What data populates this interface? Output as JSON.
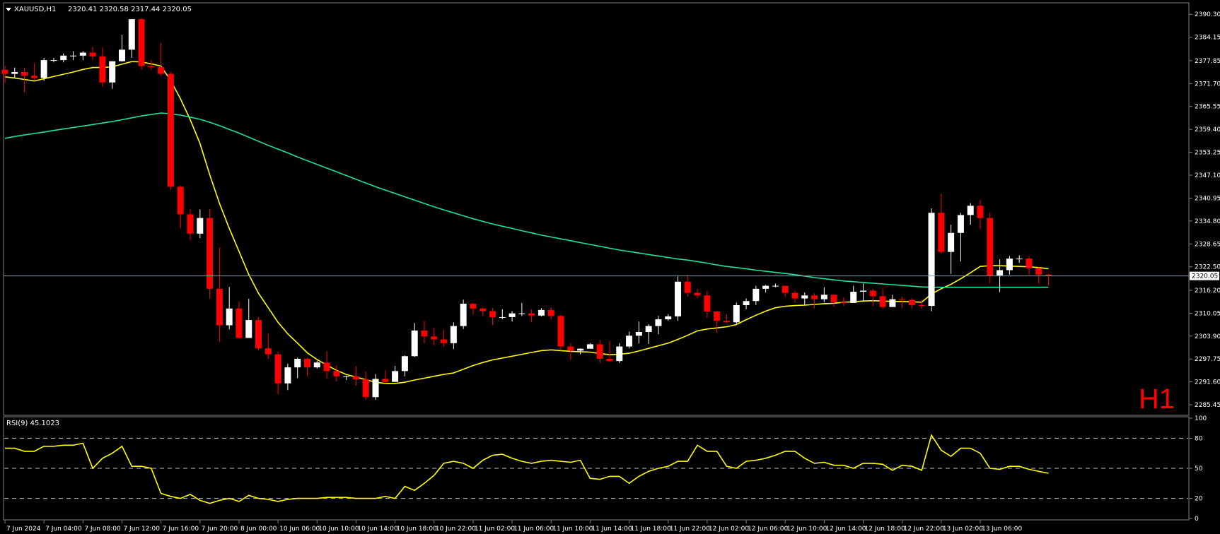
{
  "header": {
    "symbol": "XAUUSD,H1",
    "ohlc": "2320.41 2320.58 2317.44 2320.05",
    "timeframe_badge": "H1"
  },
  "colors": {
    "background": "#000000",
    "bull_candle": "#ffffff",
    "bear_candle": "#ff0000",
    "ma_fast": "#ffff00",
    "ma_slow": "#20e0a0",
    "rsi_line": "#ffff00",
    "bid_line": "#8a9aa8"
  },
  "chart_data": [
    {
      "type": "candlestick",
      "title": "XAUUSD,H1",
      "bid_label": "2320.05",
      "ylim": [
        2283.0,
        2393.0
      ],
      "y_ticks": [
        "2390.30",
        "2384.15",
        "2377.85",
        "2371.70",
        "2365.55",
        "2359.40",
        "2353.25",
        "2347.10",
        "2340.95",
        "2334.80",
        "2328.65",
        "2322.50",
        "2316.20",
        "2310.05",
        "2303.90",
        "2297.75",
        "2291.60",
        "2285.45"
      ],
      "x_tick_labels": [
        "7 Jun 2024",
        "7 Jun 04:00",
        "7 Jun 08:00",
        "7 Jun 12:00",
        "7 Jun 16:00",
        "7 Jun 20:00",
        "8 Jun 00:00",
        "10 Jun 06:00",
        "10 Jun 10:00",
        "10 Jun 14:00",
        "10 Jun 18:00",
        "10 Jun 22:00",
        "11 Jun 02:00",
        "11 Jun 06:00",
        "11 Jun 10:00",
        "11 Jun 14:00",
        "11 Jun 18:00",
        "11 Jun 22:00",
        "12 Jun 02:00",
        "12 Jun 06:00",
        "12 Jun 10:00",
        "12 Jun 14:00",
        "12 Jun 18:00",
        "12 Jun 22:00",
        "13 Jun 02:00",
        "13 Jun 06:00"
      ],
      "candles": [
        [
          2375.4,
          2374.3,
          2376.5,
          2371.9
        ],
        [
          2374.3,
          2374.8,
          2376.0,
          2373.2
        ],
        [
          2374.8,
          2373.8,
          2375.9,
          2369.3
        ],
        [
          2373.8,
          2373.2,
          2377.2,
          2372.5
        ],
        [
          2373.2,
          2378.0,
          2378.6,
          2372.4
        ],
        [
          2378.0,
          2378.0,
          2378.6,
          2377.4
        ],
        [
          2378.0,
          2379.2,
          2379.8,
          2377.4
        ],
        [
          2379.2,
          2379.2,
          2380.4,
          2378.0
        ],
        [
          2379.2,
          2380.0,
          2380.4,
          2378.0
        ],
        [
          2380.0,
          2379.0,
          2381.6,
          2378.0
        ],
        [
          2379.0,
          2372.0,
          2381.4,
          2370.8
        ],
        [
          2372.0,
          2377.7,
          2377.7,
          2370.3
        ],
        [
          2377.7,
          2380.8,
          2384.8,
          2377.6
        ],
        [
          2380.8,
          2389.0,
          2389.0,
          2378.6
        ],
        [
          2389.0,
          2376.4,
          2389.3,
          2375.4
        ],
        [
          2376.4,
          2376.1,
          2378.0,
          2375.4
        ],
        [
          2376.1,
          2374.3,
          2382.6,
          2373.8
        ],
        [
          2374.3,
          2344.0,
          2374.8,
          2343.2
        ],
        [
          2344.0,
          2336.6,
          2344.3,
          2332.8
        ],
        [
          2336.6,
          2331.4,
          2338.0,
          2329.7
        ],
        [
          2331.4,
          2335.6,
          2337.9,
          2330.2
        ],
        [
          2335.6,
          2316.6,
          2338.0,
          2313.9
        ],
        [
          2316.6,
          2306.8,
          2327.7,
          2302.3
        ],
        [
          2306.8,
          2311.3,
          2317.1,
          2305.7
        ],
        [
          2311.3,
          2303.4,
          2313.1,
          2303.2
        ],
        [
          2303.4,
          2308.2,
          2313.9,
          2306.4
        ],
        [
          2308.2,
          2300.6,
          2309.0,
          2300.1
        ],
        [
          2300.6,
          2299.0,
          2304.5,
          2297.8
        ],
        [
          2299.0,
          2291.2,
          2299.7,
          2288.3
        ],
        [
          2291.2,
          2295.5,
          2296.5,
          2289.4
        ],
        [
          2295.5,
          2297.8,
          2298.1,
          2292.6
        ],
        [
          2297.8,
          2295.5,
          2298.1,
          2293.1
        ],
        [
          2295.5,
          2296.8,
          2297.3,
          2295.2
        ],
        [
          2296.8,
          2294.5,
          2299.8,
          2292.5
        ],
        [
          2294.5,
          2293.1,
          2296.1,
          2291.7
        ],
        [
          2293.1,
          2293.1,
          2293.3,
          2292.1
        ],
        [
          2293.1,
          2292.3,
          2295.8,
          2290.6
        ],
        [
          2292.3,
          2287.5,
          2294.4,
          2286.8
        ],
        [
          2287.5,
          2292.4,
          2293.7,
          2286.8
        ],
        [
          2292.4,
          2291.6,
          2294.7,
          2291.2
        ],
        [
          2291.6,
          2294.5,
          2295.9,
          2291.6
        ],
        [
          2294.5,
          2298.5,
          2298.7,
          2293.1
        ],
        [
          2298.5,
          2305.4,
          2307.4,
          2298.3
        ],
        [
          2305.4,
          2303.8,
          2308.0,
          2302.0
        ],
        [
          2303.8,
          2303.0,
          2306.1,
          2301.4
        ],
        [
          2303.0,
          2302.0,
          2305.6,
          2301.1
        ],
        [
          2302.0,
          2306.6,
          2307.6,
          2300.4
        ],
        [
          2306.6,
          2312.6,
          2313.7,
          2305.8
        ],
        [
          2312.6,
          2311.3,
          2312.8,
          2309.7
        ],
        [
          2311.3,
          2310.6,
          2311.6,
          2309.3
        ],
        [
          2310.6,
          2309.0,
          2311.4,
          2306.8
        ],
        [
          2309.0,
          2309.0,
          2311.1,
          2308.4
        ],
        [
          2309.0,
          2310.0,
          2310.6,
          2307.8
        ],
        [
          2310.0,
          2310.0,
          2312.8,
          2309.3
        ],
        [
          2310.0,
          2309.4,
          2311.1,
          2307.6
        ],
        [
          2309.4,
          2310.9,
          2311.4,
          2309.2
        ],
        [
          2310.9,
          2309.3,
          2311.6,
          2308.4
        ],
        [
          2309.3,
          2301.1,
          2309.6,
          2300.0
        ],
        [
          2301.1,
          2300.0,
          2301.9,
          2297.5
        ],
        [
          2300.0,
          2300.5,
          2300.6,
          2299.0
        ],
        [
          2300.5,
          2301.7,
          2302.0,
          2301.1
        ],
        [
          2301.7,
          2297.8,
          2302.9,
          2296.7
        ],
        [
          2297.8,
          2297.2,
          2302.6,
          2297.0
        ],
        [
          2297.2,
          2301.1,
          2302.0,
          2296.7
        ],
        [
          2301.1,
          2304.0,
          2305.1,
          2300.6
        ],
        [
          2304.0,
          2305.0,
          2307.8,
          2301.9
        ],
        [
          2305.0,
          2306.6,
          2307.1,
          2301.8
        ],
        [
          2306.6,
          2308.4,
          2309.3,
          2304.4
        ],
        [
          2308.4,
          2309.2,
          2309.8,
          2308.0
        ],
        [
          2309.2,
          2318.5,
          2319.9,
          2308.0
        ],
        [
          2318.5,
          2315.5,
          2320.3,
          2314.5
        ],
        [
          2315.5,
          2314.8,
          2316.6,
          2314.0
        ],
        [
          2314.8,
          2310.5,
          2316.1,
          2308.8
        ],
        [
          2310.5,
          2308.0,
          2310.6,
          2304.8
        ],
        [
          2308.0,
          2307.6,
          2309.8,
          2307.4
        ],
        [
          2307.6,
          2312.2,
          2312.9,
          2307.2
        ],
        [
          2312.2,
          2313.3,
          2314.0,
          2311.1
        ],
        [
          2313.3,
          2316.6,
          2317.4,
          2312.2
        ],
        [
          2316.6,
          2317.4,
          2317.6,
          2315.6
        ],
        [
          2317.4,
          2317.4,
          2318.0,
          2317.0
        ],
        [
          2317.4,
          2315.5,
          2317.4,
          2314.4
        ],
        [
          2315.5,
          2314.0,
          2316.1,
          2312.8
        ],
        [
          2314.0,
          2314.8,
          2315.6,
          2312.3
        ],
        [
          2314.8,
          2313.8,
          2315.4,
          2311.3
        ],
        [
          2313.8,
          2315.0,
          2317.0,
          2313.0
        ],
        [
          2315.0,
          2313.0,
          2314.5,
          2311.8
        ],
        [
          2313.0,
          2312.8,
          2314.3,
          2312.0
        ],
        [
          2312.8,
          2315.8,
          2317.4,
          2313.8
        ],
        [
          2315.8,
          2316.1,
          2318.0,
          2313.1
        ],
        [
          2316.1,
          2314.6,
          2316.6,
          2312.0
        ],
        [
          2314.6,
          2311.7,
          2316.6,
          2311.3
        ],
        [
          2311.7,
          2313.8,
          2315.0,
          2312.3
        ],
        [
          2313.8,
          2313.6,
          2314.5,
          2311.4
        ],
        [
          2313.6,
          2312.2,
          2314.0,
          2311.3
        ],
        [
          2312.2,
          2312.0,
          2313.6,
          2311.2
        ],
        [
          2312.0,
          2337.0,
          2338.2,
          2310.6
        ],
        [
          2337.0,
          2326.5,
          2342.2,
          2326.0
        ],
        [
          2326.5,
          2331.6,
          2333.8,
          2320.6
        ],
        [
          2331.6,
          2336.4,
          2337.0,
          2323.9
        ],
        [
          2336.4,
          2338.9,
          2339.6,
          2333.8
        ],
        [
          2338.9,
          2335.6,
          2340.4,
          2332.6
        ],
        [
          2335.6,
          2320.2,
          2337.1,
          2318.0
        ],
        [
          2320.2,
          2321.6,
          2324.5,
          2315.7
        ],
        [
          2321.6,
          2324.7,
          2325.4,
          2320.4
        ],
        [
          2324.7,
          2324.7,
          2325.6,
          2323.6
        ],
        [
          2324.7,
          2322.1,
          2325.4,
          2320.4
        ],
        [
          2322.1,
          2320.4,
          2322.4,
          2318.0
        ],
        [
          2320.41,
          2320.05,
          2320.58,
          2317.44
        ]
      ],
      "series": [
        {
          "name": "",
          "kind": "ma_fast",
          "values": [
            2373.5,
            2373.2,
            2372.8,
            2372.4,
            2373.0,
            2373.6,
            2374.2,
            2374.8,
            2375.5,
            2376.0,
            2376.0,
            2376.2,
            2376.9,
            2377.6,
            2377.5,
            2377.0,
            2376.4,
            2372.5,
            2367.6,
            2362.0,
            2355.6,
            2347.2,
            2339.5,
            2332.8,
            2326.6,
            2320.4,
            2315.4,
            2311.5,
            2307.6,
            2304.5,
            2302.0,
            2299.4,
            2297.6,
            2296.1,
            2294.7,
            2293.6,
            2292.9,
            2292.2,
            2291.5,
            2291.2,
            2291.2,
            2291.5,
            2292.1,
            2292.6,
            2293.1,
            2293.6,
            2294.0,
            2295.0,
            2296.0,
            2296.8,
            2297.5,
            2298.0,
            2298.5,
            2299.0,
            2299.5,
            2300.0,
            2300.2,
            2300.0,
            2299.8,
            2299.7,
            2299.6,
            2299.2,
            2298.9,
            2299.0,
            2299.3,
            2299.9,
            2300.6,
            2301.3,
            2302.0,
            2303.0,
            2304.1,
            2305.3,
            2305.8,
            2306.1,
            2306.4,
            2307.0,
            2308.3,
            2309.5,
            2310.6,
            2311.5,
            2311.9,
            2312.1,
            2312.2,
            2312.4,
            2312.6,
            2312.7,
            2313.0,
            2313.1,
            2313.3,
            2313.4,
            2313.3,
            2313.2,
            2313.2,
            2313.1,
            2313.0,
            2315.2,
            2316.6,
            2317.8,
            2319.3,
            2320.9,
            2322.6,
            2322.8,
            2322.8,
            2322.7,
            2322.6,
            2322.5,
            2322.3,
            2322.0
          ]
        },
        {
          "name": "",
          "kind": "ma_slow",
          "values": [
            2357.0,
            2357.5,
            2357.9,
            2358.3,
            2358.7,
            2359.1,
            2359.5,
            2359.9,
            2360.3,
            2360.7,
            2361.1,
            2361.5,
            2362.0,
            2362.5,
            2363.0,
            2363.4,
            2363.8,
            2363.6,
            2363.2,
            2362.7,
            2362.1,
            2361.3,
            2360.4,
            2359.4,
            2358.4,
            2357.3,
            2356.2,
            2355.1,
            2354.1,
            2353.1,
            2352.0,
            2351.0,
            2350.0,
            2349.0,
            2348.0,
            2347.0,
            2346.0,
            2345.0,
            2344.0,
            2343.1,
            2342.2,
            2341.3,
            2340.4,
            2339.5,
            2338.6,
            2337.8,
            2337.0,
            2336.2,
            2335.4,
            2334.7,
            2334.0,
            2333.4,
            2332.8,
            2332.2,
            2331.6,
            2331.0,
            2330.5,
            2330.0,
            2329.5,
            2329.0,
            2328.5,
            2328.0,
            2327.5,
            2327.0,
            2326.6,
            2326.2,
            2325.8,
            2325.4,
            2325.0,
            2324.6,
            2324.3,
            2323.9,
            2323.5,
            2323.0,
            2322.6,
            2322.3,
            2322.0,
            2321.6,
            2321.3,
            2321.0,
            2320.7,
            2320.4,
            2320.0,
            2319.6,
            2319.3,
            2319.0,
            2318.7,
            2318.5,
            2318.3,
            2318.1,
            2317.9,
            2317.7,
            2317.5,
            2317.3,
            2317.1,
            2317.0,
            2317.0,
            2317.0,
            2317.0,
            2317.0,
            2317.0,
            2317.0,
            2317.0,
            2317.0,
            2317.0,
            2317.0,
            2317.0,
            2317.0
          ]
        }
      ]
    },
    {
      "type": "line",
      "title": "RSI(9) 45.1023",
      "ylim": [
        0,
        100
      ],
      "y_ticks": [
        "100",
        "80",
        "50",
        "20",
        "0"
      ],
      "levels": [
        80,
        50,
        20
      ],
      "series": [
        {
          "name": "",
          "values": [
            70,
            70,
            67,
            67,
            72,
            72,
            73,
            73,
            75,
            50,
            60,
            65,
            72,
            52,
            52,
            50,
            25,
            22,
            20,
            24,
            18,
            15,
            18,
            20,
            17,
            23,
            20,
            19,
            17,
            19,
            20,
            20,
            20,
            21,
            21,
            21,
            20,
            20,
            20,
            22,
            20,
            32,
            28,
            35,
            43,
            55,
            57,
            55,
            50,
            58,
            63,
            64,
            60,
            57,
            55,
            57,
            58,
            57,
            56,
            58,
            40,
            39,
            42,
            42,
            35,
            42,
            47,
            50,
            52,
            57,
            57,
            73,
            67,
            67,
            52,
            50,
            57,
            58,
            60,
            63,
            67,
            67,
            60,
            55,
            56,
            53,
            53,
            50,
            55,
            55,
            54,
            48,
            53,
            52,
            48,
            83,
            68,
            62,
            70,
            70,
            65,
            50,
            49,
            52,
            52,
            49,
            47,
            45.1
          ]
        }
      ]
    }
  ]
}
